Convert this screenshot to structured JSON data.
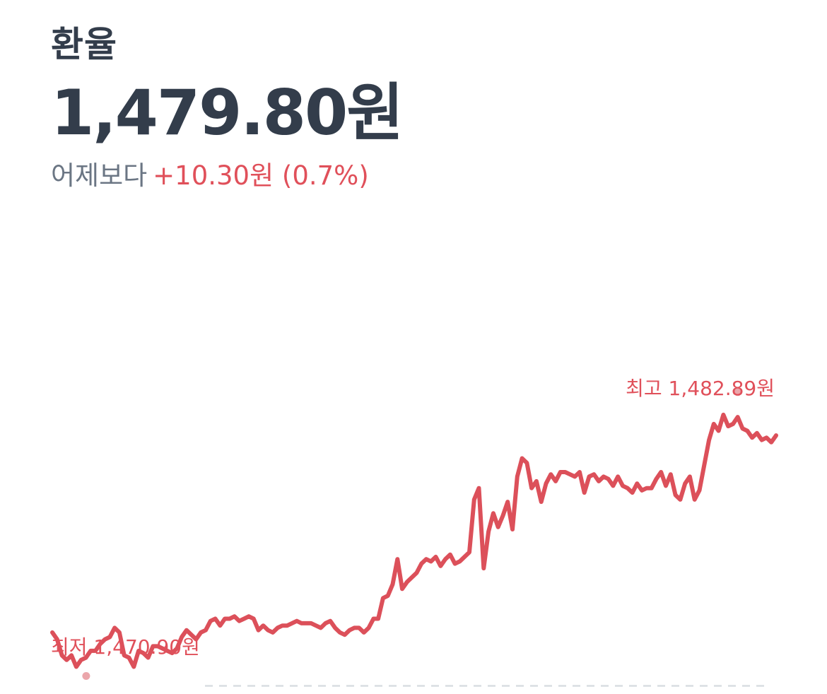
{
  "header": {
    "title": "환율",
    "price": "1,479.80원",
    "change_label": "어제보다",
    "change_value": "+10.30원 (0.7%)"
  },
  "colors": {
    "line": "#dc505a",
    "marker": "#eba6ab",
    "baseline": "#d9dde2",
    "text_dark": "#333d4b",
    "text_gray": "#6b7684",
    "accent_red": "#e0505a"
  },
  "chart_data": {
    "type": "line",
    "title": "",
    "xlabel": "",
    "ylabel": "",
    "ylim": [
      1470.3,
      1483.1
    ],
    "grid": false,
    "series": [
      {
        "values": [
          1472.4,
          1472.1,
          1471.4,
          1471.2,
          1471.4,
          1470.9,
          1471.2,
          1471.3,
          1471.6,
          1471.6,
          1471.9,
          1472.1,
          1472.2,
          1472.6,
          1472.4,
          1471.4,
          1471.3,
          1470.9,
          1471.6,
          1471.5,
          1471.3,
          1471.8,
          1471.8,
          1471.7,
          1471.6,
          1471.5,
          1471.7,
          1472.2,
          1472.5,
          1472.3,
          1472.1,
          1472.4,
          1472.5,
          1472.9,
          1473.0,
          1472.7,
          1473.0,
          1473.0,
          1473.1,
          1472.9,
          1473.0,
          1473.1,
          1473.0,
          1472.5,
          1472.7,
          1472.5,
          1472.4,
          1472.6,
          1472.7,
          1472.7,
          1472.8,
          1472.9,
          1472.8,
          1472.8,
          1472.8,
          1472.7,
          1472.6,
          1472.8,
          1472.9,
          1472.6,
          1472.4,
          1472.3,
          1472.5,
          1472.6,
          1472.6,
          1472.4,
          1472.6,
          1473.0,
          1473.0,
          1473.9,
          1474.0,
          1474.5,
          1475.6,
          1474.3,
          1474.6,
          1474.8,
          1475.0,
          1475.4,
          1475.6,
          1475.5,
          1475.7,
          1475.3,
          1475.6,
          1475.8,
          1475.4,
          1475.5,
          1475.7,
          1475.9,
          1478.2,
          1478.7,
          1475.2,
          1476.8,
          1477.6,
          1477.0,
          1477.5,
          1478.1,
          1476.9,
          1479.2,
          1480.0,
          1479.8,
          1478.7,
          1479.0,
          1478.1,
          1478.9,
          1479.3,
          1479.0,
          1479.4,
          1479.4,
          1479.3,
          1479.2,
          1479.4,
          1478.5,
          1479.2,
          1479.3,
          1479.0,
          1479.2,
          1479.1,
          1478.8,
          1479.2,
          1478.8,
          1478.7,
          1478.5,
          1478.9,
          1478.6,
          1478.7,
          1478.7,
          1479.1,
          1479.4,
          1478.8,
          1479.3,
          1478.4,
          1478.2,
          1478.9,
          1479.2,
          1478.2,
          1478.6,
          1479.7,
          1480.8,
          1481.5,
          1481.2,
          1481.9,
          1481.4,
          1481.5,
          1481.8,
          1481.3,
          1481.2,
          1480.9,
          1481.1,
          1480.8,
          1480.9,
          1480.7,
          1481.0
        ]
      }
    ],
    "annotations": {
      "high_label": "최고 1,482.89원",
      "high_value": 1482.89,
      "high_index": 143,
      "low_label": "최저 1,470.90원",
      "low_value": 1470.9,
      "low_index": 5
    }
  }
}
